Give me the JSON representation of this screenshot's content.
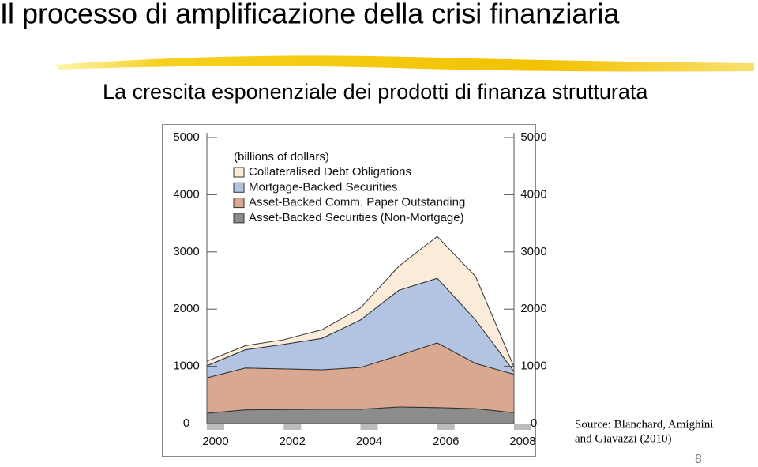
{
  "slide": {
    "title": "Il processo di amplificazione della crisi finanziaria",
    "subtitle": "La crescita esponenziale dei prodotti di finanza strutturata",
    "source": [
      "Source: Blanchard, Amighini",
      "and Giavazzi (2010)"
    ],
    "page_number": "8"
  },
  "chart_data": {
    "type": "stacked_area",
    "legend_title": "(billions of dollars)",
    "x": [
      2000,
      2001,
      2002,
      2003,
      2004,
      2005,
      2006,
      2007,
      2008
    ],
    "xlim": [
      2000,
      2008
    ],
    "xticks": [
      2000,
      2002,
      2004,
      2006,
      2008
    ],
    "ylim": [
      0,
      5000
    ],
    "yticks": [
      0,
      1000,
      2000,
      3000,
      4000,
      5000
    ],
    "legend": "top-left",
    "series": [
      {
        "name": "Collateralised Debt Obligations",
        "color": "#faecd9",
        "values": [
          80,
          70,
          80,
          150,
          210,
          420,
          730,
          760,
          80
        ]
      },
      {
        "name": "Mortgage-Backed Securities",
        "color": "#b3c4e3",
        "values": [
          210,
          320,
          430,
          550,
          830,
          1140,
          1130,
          760,
          50
        ]
      },
      {
        "name": "Asset-Backed Comm. Paper Outstanding",
        "color": "#d9a891",
        "values": [
          620,
          730,
          710,
          690,
          730,
          900,
          1130,
          790,
          670
        ]
      },
      {
        "name": "Asset-Backed Securities (Non-Mortgage)",
        "color": "#8c8c8c",
        "values": [
          180,
          240,
          245,
          250,
          250,
          290,
          280,
          260,
          190
        ]
      }
    ]
  }
}
